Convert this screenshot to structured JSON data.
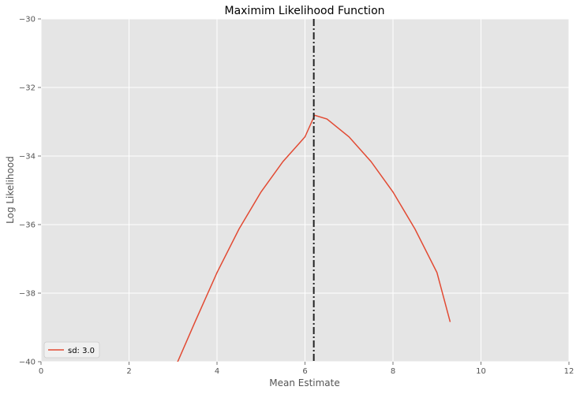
{
  "chart_data": {
    "type": "line",
    "title": "Maximim Likelihood Function",
    "xlabel": "Mean Estimate",
    "ylabel": "Log Likelihood",
    "xlim": [
      0,
      12
    ],
    "ylim": [
      -40,
      -30
    ],
    "xticks": [
      0,
      2,
      4,
      6,
      8,
      10,
      12
    ],
    "xtick_labels": [
      "0",
      "2",
      "4",
      "6",
      "8",
      "10",
      "12"
    ],
    "yticks": [
      -40,
      -38,
      -36,
      -34,
      -32,
      -30
    ],
    "ytick_labels": [
      "−40",
      "−38",
      "−36",
      "−34",
      "−32",
      "−30"
    ],
    "grid": true,
    "legend_position": "lower-left",
    "series": [
      {
        "name": "sd: 3.0",
        "color": "#e24a33",
        "x": [
          3.1,
          3.5,
          4.0,
          4.5,
          5.0,
          5.5,
          6.0,
          6.22,
          6.5,
          7.0,
          7.5,
          8.0,
          8.5,
          9.0,
          9.3
        ],
        "y": [
          -40.02,
          -38.84,
          -37.4,
          -36.13,
          -35.05,
          -34.16,
          -33.44,
          -32.81,
          -32.92,
          -33.44,
          -34.16,
          -35.05,
          -36.13,
          -37.4,
          -38.84
        ]
      }
    ],
    "vline": {
      "x": 6.2,
      "color": "#222222",
      "style": "dash-dot"
    },
    "background": "#e5e5e5",
    "gridline_color": "#ffffff"
  }
}
